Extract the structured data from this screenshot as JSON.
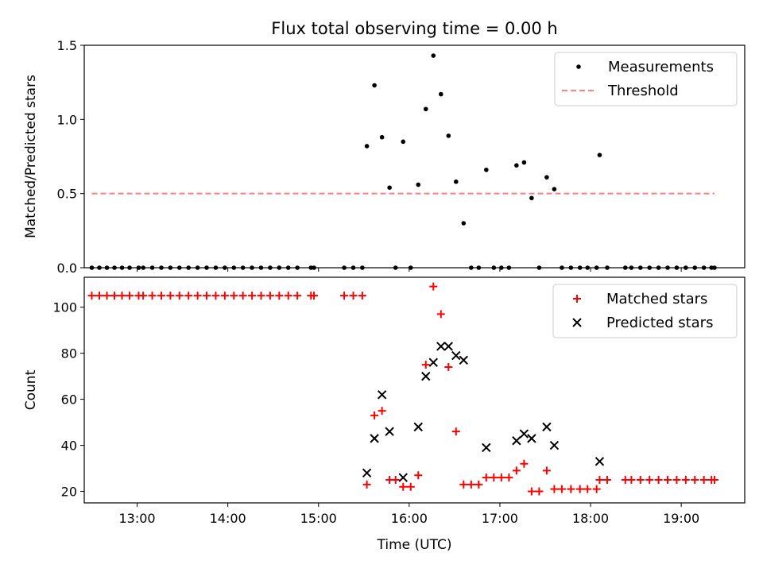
{
  "chart_data": [
    {
      "type": "scatter",
      "title": "Flux total observing time = 0.00 h",
      "ylabel": "Matched/Predicted stars",
      "xlim": [
        "12:25",
        "19:42"
      ],
      "ylim": [
        0,
        1.5
      ],
      "yticks": [
        "0.0",
        "0.5",
        "1.0",
        "1.5"
      ],
      "legend_position": "top-right",
      "series": [
        {
          "name": "Measurements",
          "marker": "dot",
          "color": "#000000",
          "points": [
            [
              "12:30",
              0
            ],
            [
              "12:35",
              0
            ],
            [
              "12:40",
              0
            ],
            [
              "12:45",
              0
            ],
            [
              "12:50",
              0
            ],
            [
              "12:55",
              0
            ],
            [
              "13:01",
              0
            ],
            [
              "13:04",
              0
            ],
            [
              "13:10",
              0
            ],
            [
              "13:16",
              0
            ],
            [
              "13:22",
              0
            ],
            [
              "13:28",
              0
            ],
            [
              "13:34",
              0
            ],
            [
              "13:40",
              0
            ],
            [
              "13:46",
              0
            ],
            [
              "13:52",
              0
            ],
            [
              "13:58",
              0
            ],
            [
              "14:04",
              0
            ],
            [
              "14:10",
              0
            ],
            [
              "14:16",
              0
            ],
            [
              "14:22",
              0
            ],
            [
              "14:28",
              0
            ],
            [
              "14:34",
              0
            ],
            [
              "14:40",
              0
            ],
            [
              "14:46",
              0
            ],
            [
              "14:55",
              0
            ],
            [
              "14:57",
              0
            ],
            [
              "15:17",
              0
            ],
            [
              "15:23",
              0
            ],
            [
              "15:29",
              0
            ],
            [
              "15:32",
              0.82
            ],
            [
              "15:37",
              1.23
            ],
            [
              "15:42",
              0.88
            ],
            [
              "15:47",
              0.54
            ],
            [
              "15:51",
              0
            ],
            [
              "15:56",
              0.85
            ],
            [
              "16:01",
              0
            ],
            [
              "16:06",
              0.56
            ],
            [
              "16:11",
              1.07
            ],
            [
              "16:16",
              1.43
            ],
            [
              "16:21",
              1.17
            ],
            [
              "16:26",
              0.89
            ],
            [
              "16:31",
              0.58
            ],
            [
              "16:36",
              0.3
            ],
            [
              "16:41",
              0
            ],
            [
              "16:46",
              0
            ],
            [
              "16:51",
              0.66
            ],
            [
              "16:56",
              0
            ],
            [
              "17:01",
              0
            ],
            [
              "17:06",
              0
            ],
            [
              "17:11",
              0.69
            ],
            [
              "17:16",
              0.71
            ],
            [
              "17:21",
              0.47
            ],
            [
              "17:26",
              0
            ],
            [
              "17:31",
              0.61
            ],
            [
              "17:36",
              0.53
            ],
            [
              "17:41",
              0
            ],
            [
              "17:47",
              0
            ],
            [
              "17:53",
              0
            ],
            [
              "17:58",
              0
            ],
            [
              "18:04",
              0
            ],
            [
              "18:06",
              0.76
            ],
            [
              "18:11",
              0
            ],
            [
              "18:23",
              0
            ],
            [
              "18:27",
              0
            ],
            [
              "18:33",
              0
            ],
            [
              "18:39",
              0
            ],
            [
              "18:45",
              0
            ],
            [
              "18:51",
              0
            ],
            [
              "18:57",
              0
            ],
            [
              "19:03",
              0
            ],
            [
              "19:09",
              0
            ],
            [
              "19:15",
              0
            ],
            [
              "19:20",
              0
            ],
            [
              "19:22",
              0
            ]
          ]
        },
        {
          "name": "Threshold",
          "line": "dashed",
          "color": "#ff7f7f",
          "points": [
            [
              "12:30",
              0.5
            ],
            [
              "19:22",
              0.5
            ]
          ]
        }
      ]
    },
    {
      "type": "scatter",
      "xlabel": "Time (UTC)",
      "ylabel": "Count",
      "xlim": [
        "12:25",
        "19:42"
      ],
      "ylim": [
        15,
        113
      ],
      "xticks": [
        "13:00",
        "14:00",
        "15:00",
        "16:00",
        "17:00",
        "18:00",
        "19:00"
      ],
      "yticks": [
        "20",
        "40",
        "60",
        "80",
        "100"
      ],
      "legend_position": "top-right",
      "series": [
        {
          "name": "Matched stars",
          "marker": "plus",
          "color": "#ff0000",
          "points": [
            [
              "12:30",
              105
            ],
            [
              "12:35",
              105
            ],
            [
              "12:40",
              105
            ],
            [
              "12:45",
              105
            ],
            [
              "12:50",
              105
            ],
            [
              "12:55",
              105
            ],
            [
              "13:01",
              105
            ],
            [
              "13:04",
              105
            ],
            [
              "13:10",
              105
            ],
            [
              "13:16",
              105
            ],
            [
              "13:22",
              105
            ],
            [
              "13:28",
              105
            ],
            [
              "13:34",
              105
            ],
            [
              "13:40",
              105
            ],
            [
              "13:46",
              105
            ],
            [
              "13:52",
              105
            ],
            [
              "13:58",
              105
            ],
            [
              "14:04",
              105
            ],
            [
              "14:10",
              105
            ],
            [
              "14:16",
              105
            ],
            [
              "14:22",
              105
            ],
            [
              "14:28",
              105
            ],
            [
              "14:34",
              105
            ],
            [
              "14:40",
              105
            ],
            [
              "14:46",
              105
            ],
            [
              "14:55",
              105
            ],
            [
              "14:57",
              105
            ],
            [
              "15:17",
              105
            ],
            [
              "15:23",
              105
            ],
            [
              "15:29",
              105
            ],
            [
              "15:32",
              23
            ],
            [
              "15:37",
              53
            ],
            [
              "15:42",
              55
            ],
            [
              "15:47",
              25
            ],
            [
              "15:51",
              25
            ],
            [
              "15:56",
              22
            ],
            [
              "16:01",
              22
            ],
            [
              "16:06",
              27
            ],
            [
              "16:11",
              75
            ],
            [
              "16:16",
              109
            ],
            [
              "16:21",
              97
            ],
            [
              "16:26",
              74
            ],
            [
              "16:31",
              46
            ],
            [
              "16:36",
              23
            ],
            [
              "16:41",
              23
            ],
            [
              "16:46",
              23
            ],
            [
              "16:51",
              26
            ],
            [
              "16:56",
              26
            ],
            [
              "17:01",
              26
            ],
            [
              "17:06",
              26
            ],
            [
              "17:11",
              29
            ],
            [
              "17:16",
              32
            ],
            [
              "17:21",
              20
            ],
            [
              "17:26",
              20
            ],
            [
              "17:31",
              29
            ],
            [
              "17:36",
              21
            ],
            [
              "17:41",
              21
            ],
            [
              "17:47",
              21
            ],
            [
              "17:53",
              21
            ],
            [
              "17:58",
              21
            ],
            [
              "18:04",
              21
            ],
            [
              "18:06",
              25
            ],
            [
              "18:11",
              25
            ],
            [
              "18:23",
              25
            ],
            [
              "18:27",
              25
            ],
            [
              "18:33",
              25
            ],
            [
              "18:39",
              25
            ],
            [
              "18:45",
              25
            ],
            [
              "18:51",
              25
            ],
            [
              "18:57",
              25
            ],
            [
              "19:03",
              25
            ],
            [
              "19:09",
              25
            ],
            [
              "19:15",
              25
            ],
            [
              "19:20",
              25
            ],
            [
              "19:22",
              25
            ]
          ]
        },
        {
          "name": "Predicted stars",
          "marker": "x",
          "color": "#000000",
          "points": [
            [
              "15:32",
              28
            ],
            [
              "15:37",
              43
            ],
            [
              "15:42",
              62
            ],
            [
              "15:47",
              46
            ],
            [
              "15:56",
              26
            ],
            [
              "16:06",
              48
            ],
            [
              "16:11",
              70
            ],
            [
              "16:16",
              76
            ],
            [
              "16:21",
              83
            ],
            [
              "16:26",
              83
            ],
            [
              "16:31",
              79
            ],
            [
              "16:36",
              77
            ],
            [
              "16:51",
              39
            ],
            [
              "17:11",
              42
            ],
            [
              "17:16",
              45
            ],
            [
              "17:21",
              43
            ],
            [
              "17:31",
              48
            ],
            [
              "17:36",
              40
            ],
            [
              "18:06",
              33
            ]
          ]
        }
      ]
    }
  ]
}
